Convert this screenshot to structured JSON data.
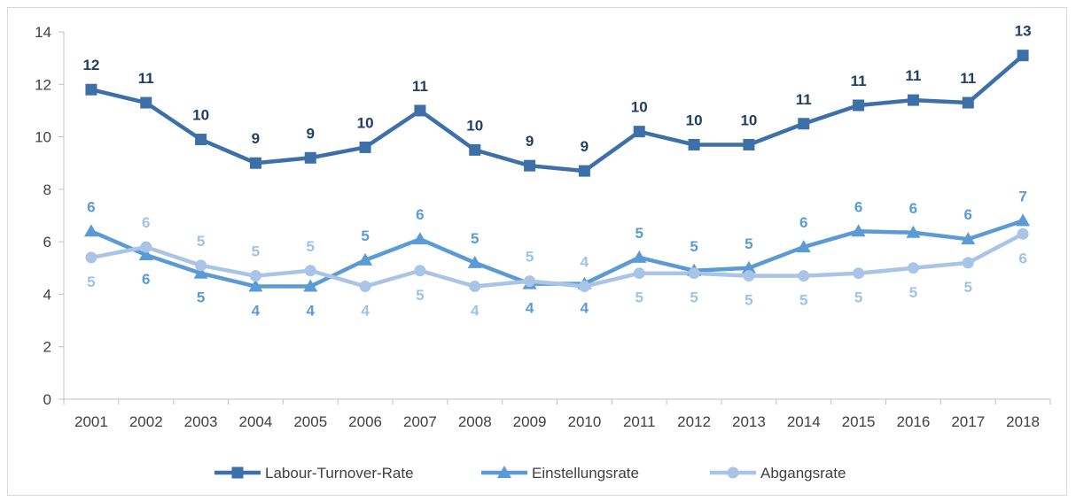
{
  "chart_data": {
    "type": "line",
    "categories": [
      "2001",
      "2002",
      "2003",
      "2004",
      "2005",
      "2006",
      "2007",
      "2008",
      "2009",
      "2010",
      "2011",
      "2012",
      "2013",
      "2014",
      "2015",
      "2016",
      "2017",
      "2018"
    ],
    "ylim": [
      0,
      14
    ],
    "yticks": [
      0,
      2,
      4,
      6,
      8,
      10,
      12,
      14
    ],
    "grid": false,
    "legend": "bottom",
    "series": [
      {
        "name": "Labour-Turnover-Rate",
        "color": "#3d70a8",
        "marker": "square",
        "values": [
          11.8,
          11.3,
          9.9,
          9.0,
          9.2,
          9.6,
          11.0,
          9.5,
          8.9,
          8.7,
          10.2,
          9.7,
          9.7,
          10.5,
          11.2,
          11.4,
          11.3,
          13.1
        ],
        "labels": [
          "12",
          "11",
          "10",
          "9",
          "9",
          "10",
          "11",
          "10",
          "9",
          "9",
          "10",
          "10",
          "10",
          "11",
          "11",
          "11",
          "11",
          "13"
        ],
        "label_color": "#1f3f66",
        "label_pos": [
          "above",
          "above",
          "above",
          "above",
          "above",
          "above",
          "above",
          "above",
          "above",
          "above",
          "above",
          "above",
          "above",
          "above",
          "above",
          "above",
          "above",
          "above"
        ]
      },
      {
        "name": "Einstellungsrate",
        "color": "#5b9bd5",
        "marker": "triangle",
        "values": [
          6.4,
          5.5,
          4.8,
          4.3,
          4.3,
          5.3,
          6.1,
          5.2,
          4.4,
          4.4,
          5.4,
          4.9,
          5.0,
          5.8,
          6.4,
          6.35,
          6.1,
          6.8
        ],
        "labels": [
          "6",
          "6",
          "5",
          "4",
          "4",
          "5",
          "6",
          "5",
          "4",
          "4",
          "5",
          "5",
          "5",
          "6",
          "6",
          "6",
          "6",
          "7"
        ],
        "label_color": "#5b9bd5",
        "label_pos": [
          "above",
          "below",
          "below",
          "below",
          "below",
          "above",
          "above",
          "above",
          "below",
          "below",
          "above",
          "above",
          "above",
          "above",
          "above",
          "above",
          "above",
          "above"
        ]
      },
      {
        "name": "Abgangsrate",
        "color": "#a9c4e6",
        "marker": "circle",
        "values": [
          5.4,
          5.8,
          5.1,
          4.7,
          4.9,
          4.3,
          4.9,
          4.3,
          4.5,
          4.3,
          4.8,
          4.8,
          4.7,
          4.7,
          4.8,
          5.0,
          5.2,
          6.3
        ],
        "labels": [
          "5",
          "6",
          "5",
          "5",
          "5",
          "4",
          "5",
          "4",
          "5",
          "4",
          "5",
          "5",
          "5",
          "5",
          "5",
          "5",
          "5",
          "6"
        ],
        "label_color": "#9dc3e6",
        "label_pos": [
          "below",
          "above",
          "above",
          "above",
          "above",
          "below",
          "below",
          "below",
          "above",
          "above",
          "below",
          "below",
          "below",
          "below",
          "below",
          "below",
          "below",
          "below"
        ]
      }
    ]
  }
}
